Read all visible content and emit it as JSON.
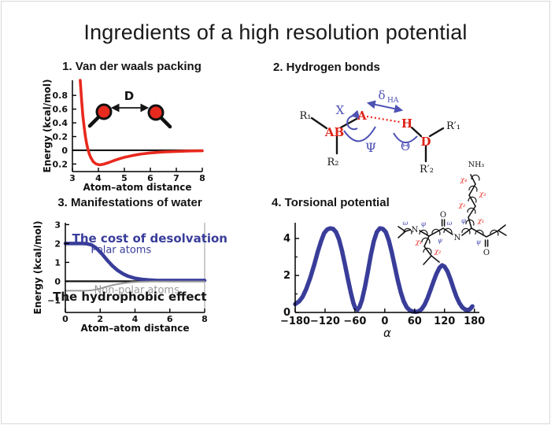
{
  "slide": {
    "title": "Ingredients of a high resolution potential"
  },
  "panels": {
    "vdw": {
      "heading": "1. Van der waals packing"
    },
    "hbond": {
      "heading": "2. Hydrogen bonds"
    },
    "water": {
      "heading": "3. Manifestations of water"
    },
    "torsion": {
      "heading": "4. Torsional potential"
    }
  },
  "colors": {
    "red": "#e8291e",
    "blue": "#393d99",
    "hbond_blue": "#4d52b3",
    "gray": "#9a9a9a",
    "black": "#151515"
  },
  "chart_data": [
    {
      "id": "vdw",
      "type": "line",
      "title": "1. Van der waals packing",
      "xlabel": "Atom–atom distance",
      "ylabel": "Energy (kcal/mol)",
      "xlim": [
        3,
        8
      ],
      "ylim": [
        -0.31,
        1.02
      ],
      "xticks": [
        3,
        4,
        5,
        6,
        7,
        8
      ],
      "xtick_labels": [
        "3",
        "4",
        "5",
        "6",
        "7",
        "8"
      ],
      "yticks": [
        0.8,
        0.6,
        0.4,
        0.2,
        0,
        -0.2
      ],
      "ytick_labels": [
        "0.8",
        "0.6",
        "0.4",
        "0.2",
        "0",
        "−0.2"
      ],
      "zero_line": true,
      "grid": false,
      "legend": false,
      "illustration_label": "D",
      "series": [
        {
          "name": "van der Waals energy",
          "color": "red",
          "width": 3.6,
          "points": [
            [
              3.3,
              1.02
            ],
            [
              3.35,
              0.74
            ],
            [
              3.4,
              0.51
            ],
            [
              3.45,
              0.34
            ],
            [
              3.5,
              0.2
            ],
            [
              3.55,
              0.095
            ],
            [
              3.6,
              0.012
            ],
            [
              3.65,
              -0.052
            ],
            [
              3.7,
              -0.101
            ],
            [
              3.8,
              -0.165
            ],
            [
              3.9,
              -0.196
            ],
            [
              4.0,
              -0.209
            ],
            [
              4.05,
              -0.21
            ],
            [
              4.1,
              -0.209
            ],
            [
              4.2,
              -0.202
            ],
            [
              4.4,
              -0.178
            ],
            [
              4.6,
              -0.15
            ],
            [
              4.8,
              -0.124
            ],
            [
              5.0,
              -0.102
            ],
            [
              5.3,
              -0.077
            ],
            [
              5.6,
              -0.057
            ],
            [
              6.0,
              -0.038
            ],
            [
              6.5,
              -0.024
            ],
            [
              7.0,
              -0.016
            ],
            [
              7.5,
              -0.01
            ],
            [
              8.0,
              -0.007
            ]
          ]
        }
      ]
    },
    {
      "id": "water",
      "type": "line",
      "title": "3. Manifestations of water",
      "xlabel": "Atom–atom distance",
      "ylabel": "Energy (kcal/mol)",
      "xlim": [
        0,
        8
      ],
      "ylim": [
        -1.65,
        3.1
      ],
      "xticks": [
        0,
        2,
        4,
        6,
        8
      ],
      "xtick_labels": [
        "0",
        "2",
        "4",
        "6",
        "8"
      ],
      "yticks": [
        3,
        2,
        1,
        0,
        -1
      ],
      "ytick_labels": [
        "3",
        "2",
        "1",
        "0",
        "−1"
      ],
      "zero_line": true,
      "grid": false,
      "legend": false,
      "box_right": true,
      "series": [
        {
          "name": "polar atoms desolvation cost",
          "color": "blue",
          "width": 4.5,
          "points": [
            [
              0,
              2
            ],
            [
              0.6,
              2
            ],
            [
              1.0,
              2
            ],
            [
              1.2,
              1.99
            ],
            [
              1.5,
              1.93
            ],
            [
              1.8,
              1.74
            ],
            [
              2.1,
              1.45
            ],
            [
              2.4,
              1.12
            ],
            [
              2.7,
              0.82
            ],
            [
              3.0,
              0.58
            ],
            [
              3.3,
              0.4
            ],
            [
              3.6,
              0.27
            ],
            [
              4.0,
              0.16
            ],
            [
              4.4,
              0.1
            ],
            [
              4.8,
              0.07
            ],
            [
              5.2,
              0.05
            ],
            [
              6.0,
              0.04
            ],
            [
              7.0,
              0.04
            ],
            [
              8.0,
              0.04
            ]
          ]
        },
        {
          "name": "non-polar atoms hydrophobic effect",
          "color": "gray",
          "width": 2,
          "points": [
            [
              0,
              -0.5
            ],
            [
              0.8,
              -0.5
            ],
            [
              1.2,
              -0.5
            ],
            [
              1.5,
              -0.48
            ],
            [
              1.8,
              -0.43
            ],
            [
              2.1,
              -0.36
            ],
            [
              2.4,
              -0.28
            ],
            [
              2.7,
              -0.21
            ],
            [
              3.0,
              -0.15
            ],
            [
              3.4,
              -0.09
            ],
            [
              3.8,
              -0.05
            ],
            [
              4.2,
              -0.03
            ],
            [
              4.6,
              -0.02
            ],
            [
              5.0,
              -0.01
            ],
            [
              6.0,
              -0.01
            ],
            [
              8.0,
              -0.01
            ]
          ]
        }
      ],
      "annotations": [
        {
          "text": "The cost of desolvation",
          "x": 4.85,
          "y": 2.05,
          "color": "blue",
          "size": 15,
          "bold": true
        },
        {
          "text": "Polar atoms",
          "x": 3.2,
          "y": 1.5,
          "color": "blue",
          "size": 13
        },
        {
          "text": "Non-polar atoms",
          "x": 4.1,
          "y": -0.62,
          "color": "gray",
          "size": 13
        },
        {
          "text": "The hydrophobic effect",
          "x": 3.7,
          "y": -1.02,
          "color": "black",
          "size": 15,
          "bold": true
        }
      ]
    },
    {
      "id": "torsion",
      "type": "line",
      "title": "4. Torsional potential",
      "xlabel": "α",
      "xlabel_italic": true,
      "ylabel": "",
      "xlim": [
        -180,
        190
      ],
      "ylim": [
        0,
        4.85
      ],
      "xticks": [
        -180,
        -120,
        -60,
        0,
        60,
        120,
        180
      ],
      "xtick_labels": [
        "−180",
        "−120",
        "−60",
        "0",
        "60",
        "120",
        "180"
      ],
      "yticks": [
        0,
        2,
        4
      ],
      "ytick_labels": [
        "0",
        "2",
        "4"
      ],
      "yticks_minor": [
        1,
        3
      ],
      "zero_line": false,
      "grid": false,
      "legend": false,
      "series": [
        {
          "name": "torsional energy",
          "color": "blue",
          "width": 5.5,
          "points": [
            [
              -180,
              0.45
            ],
            [
              -172,
              0.6
            ],
            [
              -165,
              0.85
            ],
            [
              -158,
              1.25
            ],
            [
              -150,
              1.85
            ],
            [
              -142,
              2.55
            ],
            [
              -135,
              3.25
            ],
            [
              -128,
              3.85
            ],
            [
              -122,
              4.28
            ],
            [
              -116,
              4.48
            ],
            [
              -110,
              4.55
            ],
            [
              -104,
              4.52
            ],
            [
              -98,
              4.35
            ],
            [
              -92,
              3.95
            ],
            [
              -86,
              3.35
            ],
            [
              -80,
              2.6
            ],
            [
              -74,
              1.8
            ],
            [
              -68,
              1.05
            ],
            [
              -63,
              0.5
            ],
            [
              -59,
              0.22
            ],
            [
              -55,
              0.15
            ],
            [
              -51,
              0.28
            ],
            [
              -46,
              0.65
            ],
            [
              -40,
              1.35
            ],
            [
              -34,
              2.2
            ],
            [
              -28,
              3.1
            ],
            [
              -22,
              3.85
            ],
            [
              -16,
              4.35
            ],
            [
              -10,
              4.55
            ],
            [
              -4,
              4.52
            ],
            [
              2,
              4.35
            ],
            [
              8,
              3.9
            ],
            [
              14,
              3.25
            ],
            [
              20,
              2.5
            ],
            [
              26,
              1.75
            ],
            [
              32,
              1.1
            ],
            [
              38,
              0.6
            ],
            [
              44,
              0.28
            ],
            [
              50,
              0.12
            ],
            [
              56,
              0.05
            ],
            [
              62,
              0.03
            ],
            [
              68,
              0.06
            ],
            [
              74,
              0.18
            ],
            [
              80,
              0.42
            ],
            [
              86,
              0.78
            ],
            [
              92,
              1.22
            ],
            [
              98,
              1.68
            ],
            [
              104,
              2.1
            ],
            [
              110,
              2.42
            ],
            [
              115,
              2.55
            ],
            [
              120,
              2.48
            ],
            [
              126,
              2.22
            ],
            [
              132,
              1.8
            ],
            [
              138,
              1.3
            ],
            [
              144,
              0.85
            ],
            [
              150,
              0.5
            ],
            [
              156,
              0.27
            ],
            [
              162,
              0.15
            ],
            [
              168,
              0.13
            ],
            [
              172,
              0.2
            ],
            [
              176,
              0.33
            ]
          ]
        }
      ]
    }
  ],
  "hbond_diagram": {
    "r1": "R₁",
    "r2": "R₂",
    "ab": "AB",
    "a": "A",
    "h": "H",
    "d": "D",
    "rp1": "R′₁",
    "rp2": "R′₂",
    "x": "X",
    "psi": "Ψ",
    "theta": "Θ",
    "delta": "δ",
    "delta_sub": "HA"
  },
  "molecule": {
    "nh3": "NH₃",
    "n1": "N",
    "n2": "N",
    "o1": "O",
    "o2": "O",
    "omega1": "ω",
    "phi1": "φ",
    "psi1": "ψ",
    "omega2": "ω",
    "phi2": "φ",
    "psi2": "ψ",
    "chi1a": "χ₁",
    "chi2a": "χ₂",
    "chi1b": "χ₁",
    "chi2b": "χ₂",
    "chi3b": "χ₃",
    "chi4b": "χ₄"
  }
}
